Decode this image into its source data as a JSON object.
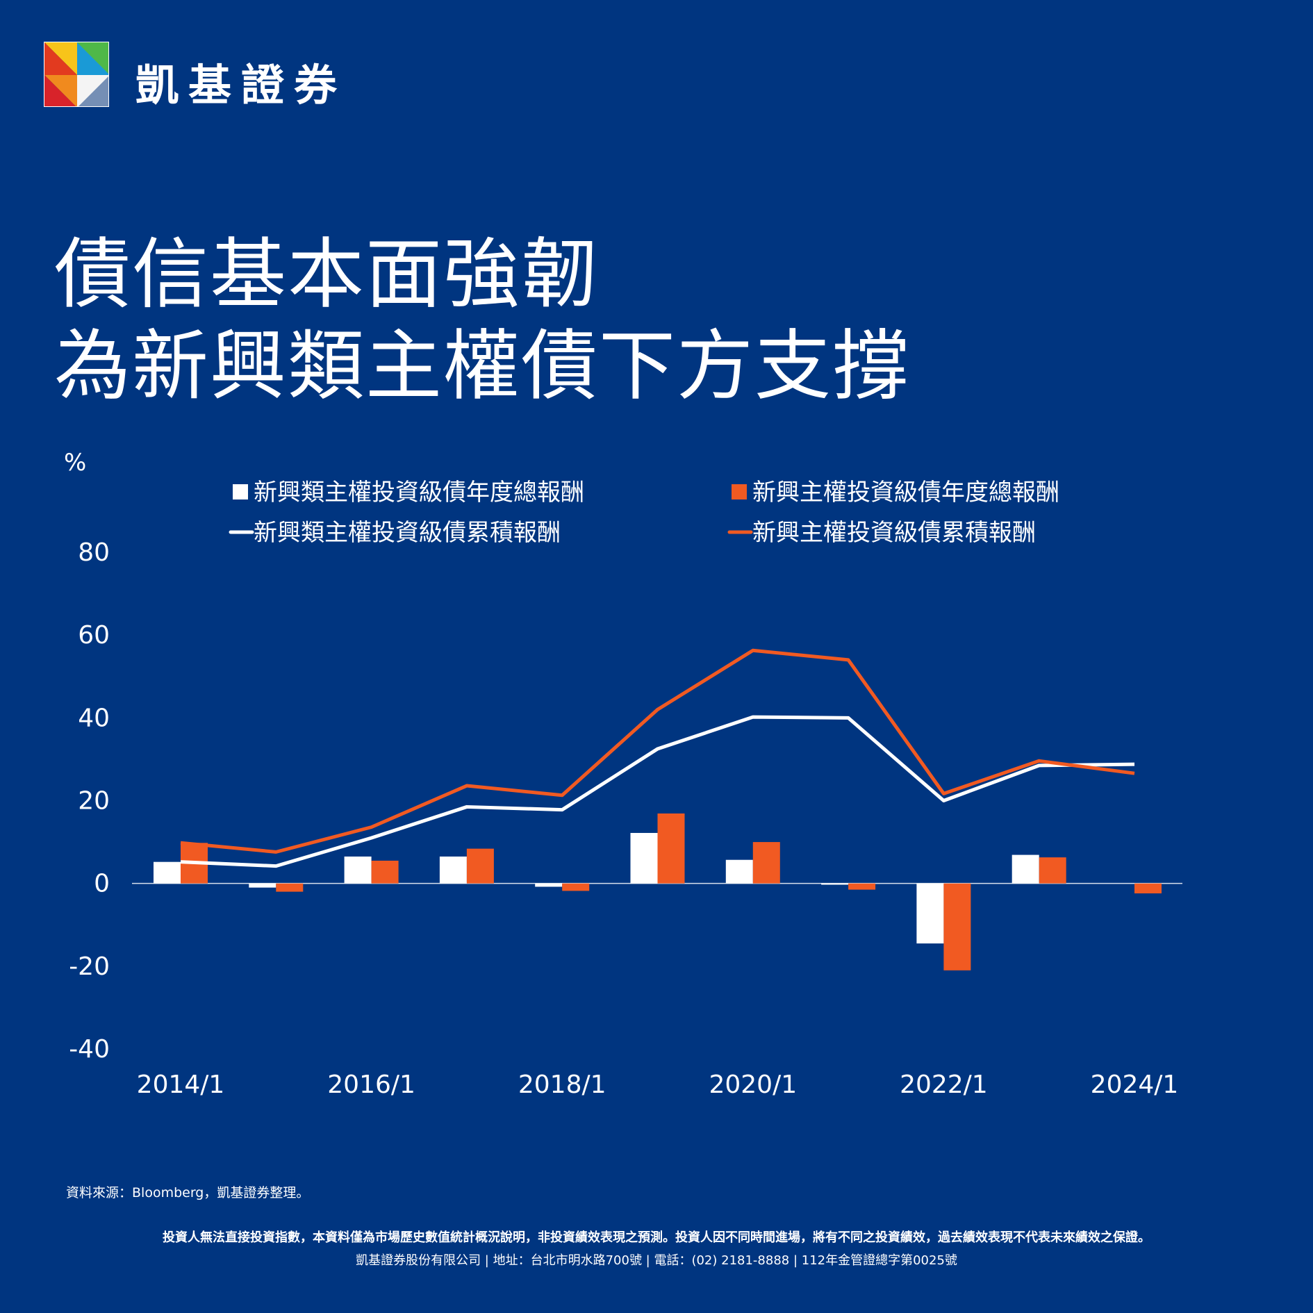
{
  "brand": {
    "name": "凱基證券",
    "logo_icon": "kgi-logo-icon"
  },
  "headline": {
    "line1": "債信基本面強韌",
    "line2": "為新興類主權債下方支撐"
  },
  "colors": {
    "background": "#003580",
    "white_series": "#ffffff",
    "orange_series": "#f15a22"
  },
  "chart_data": {
    "type": "bar",
    "ylabel": "%",
    "ylim": [
      -40,
      80
    ],
    "yticks": [
      "80",
      "60",
      "40",
      "20",
      "0",
      "-20",
      "-40"
    ],
    "x": [
      "2014/1",
      "2015/1",
      "2016/1",
      "2017/1",
      "2018/1",
      "2019/1",
      "2020/1",
      "2021/1",
      "2022/1",
      "2023/1",
      "2024/1"
    ],
    "xtick_labels": [
      "2014/1",
      "",
      "2016/1",
      "",
      "2018/1",
      "",
      "2020/1",
      "",
      "2022/1",
      "",
      "2024/1"
    ],
    "legend_position": "top",
    "series": [
      {
        "name": "新興類主權投資級債年度總報酬",
        "type": "bar",
        "color": "#ffffff",
        "values": [
          5.2,
          -1.0,
          6.5,
          6.5,
          -0.8,
          12.2,
          5.7,
          -0.3,
          -14.5,
          6.9,
          null
        ]
      },
      {
        "name": "新興主權投資級債年度總報酬",
        "type": "bar",
        "color": "#f15a22",
        "values": [
          9.8,
          -2.0,
          5.5,
          8.4,
          -1.8,
          16.9,
          10.0,
          -1.5,
          -21.0,
          6.3,
          -2.4
        ]
      },
      {
        "name": "新興類主權投資級債累積報酬",
        "type": "line",
        "color": "#ffffff",
        "values": [
          5.2,
          4.2,
          11.0,
          18.5,
          17.8,
          32.5,
          40.2,
          40.0,
          20.0,
          28.5,
          28.8
        ]
      },
      {
        "name": "新興主權投資級債累積報酬",
        "type": "line",
        "color": "#f15a22",
        "values": [
          9.8,
          7.6,
          13.6,
          23.6,
          21.3,
          42.0,
          56.3,
          54.0,
          21.7,
          29.6,
          26.6
        ]
      }
    ]
  },
  "footer": {
    "source": "資料來源：Bloomberg，凱基證券整理。",
    "disclaimer": "投資人無法直接投資指數，本資料僅為市場歷史數值統計概況說明，非投資績效表現之預測。投資人因不同時間進場，將有不同之投資績效，過去績效表現不代表未來績效之保證。",
    "company_info": "凱基證券股份有限公司 | 地址：台北市明水路700號 | 電話：(02) 2181-8888 | 112年金管證總字第0025號"
  }
}
